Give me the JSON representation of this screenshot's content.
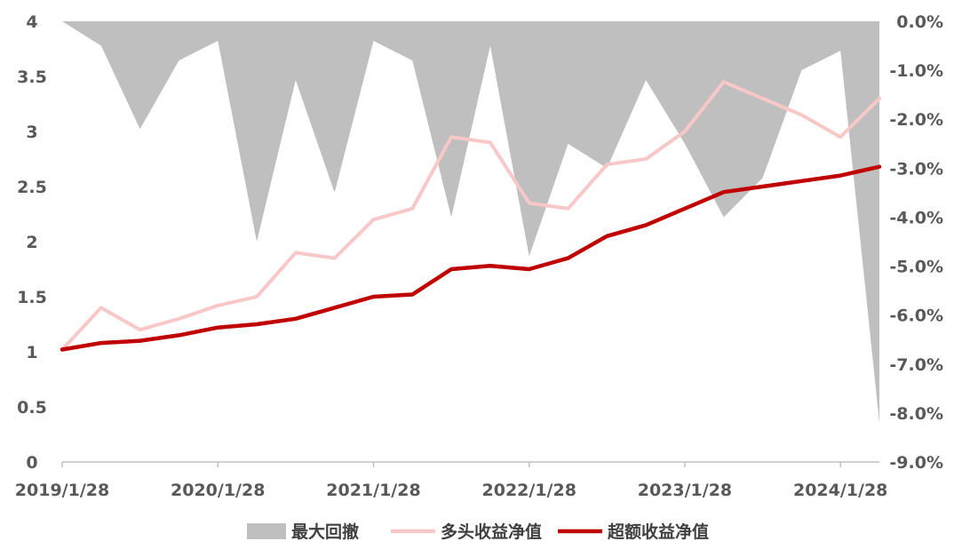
{
  "chart_data": {
    "type": "line",
    "x": [
      "2019/1/28",
      "2019/4/28",
      "2019/7/28",
      "2019/10/28",
      "2020/1/28",
      "2020/4/28",
      "2020/7/28",
      "2020/10/28",
      "2021/1/28",
      "2021/4/28",
      "2021/7/28",
      "2021/10/28",
      "2022/1/28",
      "2022/4/28",
      "2022/7/28",
      "2022/10/28",
      "2023/1/28",
      "2023/4/28",
      "2023/7/28",
      "2023/10/28",
      "2024/1/28",
      "2024/4/28"
    ],
    "x_ticks": [
      "2019/1/28",
      "2020/1/28",
      "2021/1/28",
      "2022/1/28",
      "2023/1/28",
      "2024/1/28"
    ],
    "y_left_ticks": [
      "0",
      "0.5",
      "1",
      "1.5",
      "2",
      "2.5",
      "3",
      "3.5",
      "4"
    ],
    "y_left_lim": [
      0,
      4
    ],
    "y_right_ticks": [
      "0.0%",
      "-1.0%",
      "-2.0%",
      "-3.0%",
      "-4.0%",
      "-5.0%",
      "-6.0%",
      "-7.0%",
      "-8.0%",
      "-9.0%"
    ],
    "y_right_lim": [
      -9.0,
      0.0
    ],
    "series": [
      {
        "name": "最大回撤",
        "type": "area",
        "axis": "right",
        "color": "#bfbfbf",
        "values": [
          0.0,
          -0.5,
          -2.2,
          -0.8,
          -0.4,
          -4.5,
          -1.2,
          -3.5,
          -0.4,
          -0.8,
          -4.0,
          -0.5,
          -4.8,
          -2.5,
          -3.0,
          -1.2,
          -2.5,
          -4.0,
          -3.2,
          -1.0,
          -0.6,
          -8.2
        ]
      },
      {
        "name": "多头收益净值",
        "type": "line",
        "axis": "left",
        "color": "#f8c8c8",
        "values": [
          1.02,
          1.4,
          1.2,
          1.3,
          1.42,
          1.5,
          1.9,
          1.85,
          2.2,
          2.3,
          2.95,
          2.9,
          2.35,
          2.3,
          2.7,
          2.75,
          3.0,
          3.45,
          3.3,
          3.15,
          2.95,
          3.3
        ]
      },
      {
        "name": "超额收益净值",
        "type": "line",
        "axis": "left",
        "color": "#c00000",
        "values": [
          1.02,
          1.08,
          1.1,
          1.15,
          1.22,
          1.25,
          1.3,
          1.4,
          1.5,
          1.52,
          1.75,
          1.78,
          1.75,
          1.85,
          2.05,
          2.15,
          2.3,
          2.45,
          2.5,
          2.55,
          2.6,
          2.68
        ]
      }
    ],
    "legend": {
      "position": "bottom"
    },
    "grid": false
  }
}
